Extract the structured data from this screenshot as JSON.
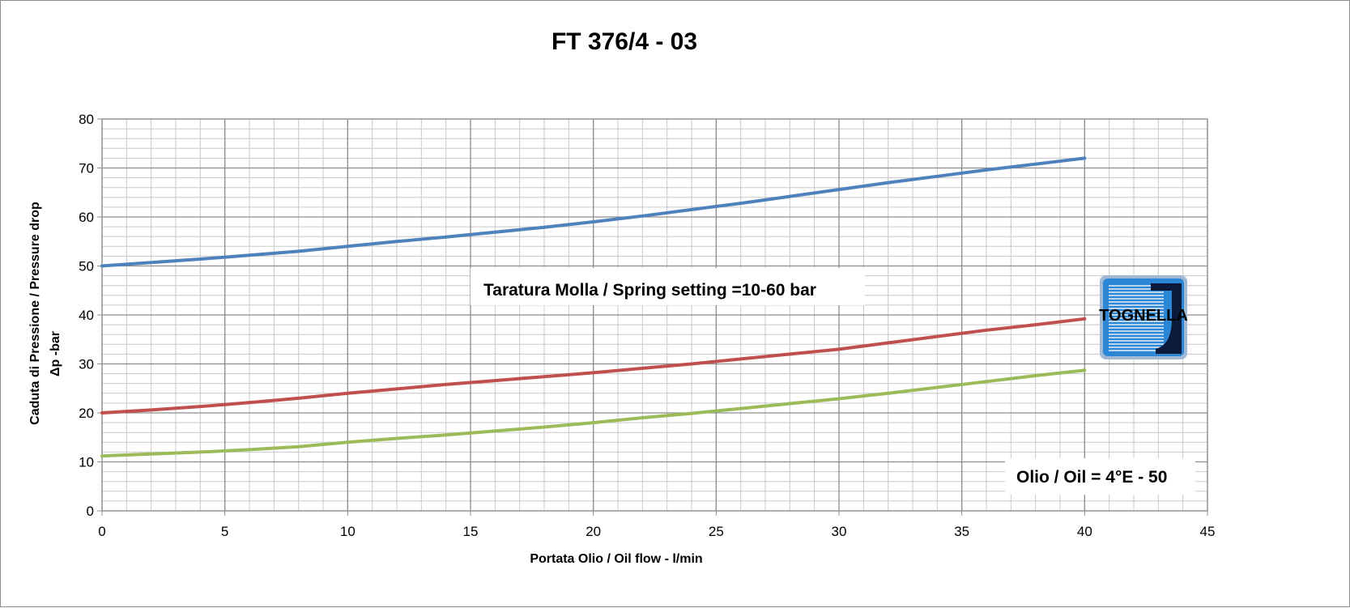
{
  "chart_data": {
    "type": "line",
    "title": "FT 376/4 - 03",
    "xlabel": "Portata Olio / Oil flow -  l/min",
    "ylabel_line1": "Caduta di Pressione / Pressure drop",
    "ylabel_line2": "Δp -bar",
    "xlim": [
      0,
      45
    ],
    "ylim": [
      0,
      80
    ],
    "x_ticks": [
      0,
      5,
      10,
      15,
      20,
      25,
      30,
      35,
      40,
      45
    ],
    "y_ticks": [
      0,
      10,
      20,
      30,
      40,
      50,
      60,
      70,
      80
    ],
    "grid": true,
    "annotations": {
      "spring": "Taratura Molla / Spring setting =10-60 bar",
      "oil": "Olio / Oil = 4°E - 50"
    },
    "series": [
      {
        "color": "#4f81bd",
        "x": [
          0,
          2,
          4,
          6,
          8,
          10,
          12,
          14,
          16,
          18,
          20,
          22,
          24,
          26,
          28,
          30,
          32,
          34,
          36,
          38,
          40
        ],
        "y": [
          50,
          50.7,
          51.4,
          52.2,
          53,
          54,
          55,
          55.9,
          56.9,
          57.9,
          59,
          60.2,
          61.5,
          62.8,
          64.2,
          65.6,
          67,
          68.3,
          69.6,
          70.8,
          72
        ]
      },
      {
        "color": "#c0504d",
        "x": [
          0,
          2,
          4,
          6,
          8,
          10,
          12,
          14,
          16,
          18,
          20,
          22,
          24,
          26,
          28,
          30,
          32,
          34,
          36,
          38,
          40
        ],
        "y": [
          20,
          20.6,
          21.3,
          22.1,
          23,
          24,
          24.9,
          25.8,
          26.6,
          27.4,
          28.2,
          29.1,
          30,
          31,
          32,
          33,
          34.3,
          35.6,
          36.9,
          38,
          39.2
        ]
      },
      {
        "color": "#9bbb59",
        "x": [
          0,
          2,
          4,
          6,
          8,
          10,
          12,
          14,
          16,
          18,
          20,
          22,
          24,
          26,
          28,
          30,
          32,
          34,
          36,
          38,
          40
        ],
        "y": [
          11.2,
          11.6,
          12,
          12.5,
          13.1,
          14,
          14.8,
          15.5,
          16.3,
          17.1,
          18,
          19,
          19.9,
          20.9,
          21.9,
          22.9,
          24,
          25.2,
          26.4,
          27.6,
          28.7
        ]
      }
    ]
  },
  "logo": {
    "text": "TOGNELLA",
    "colors": {
      "primary": "#2b86d6",
      "dark": "#0a1a3a"
    }
  }
}
